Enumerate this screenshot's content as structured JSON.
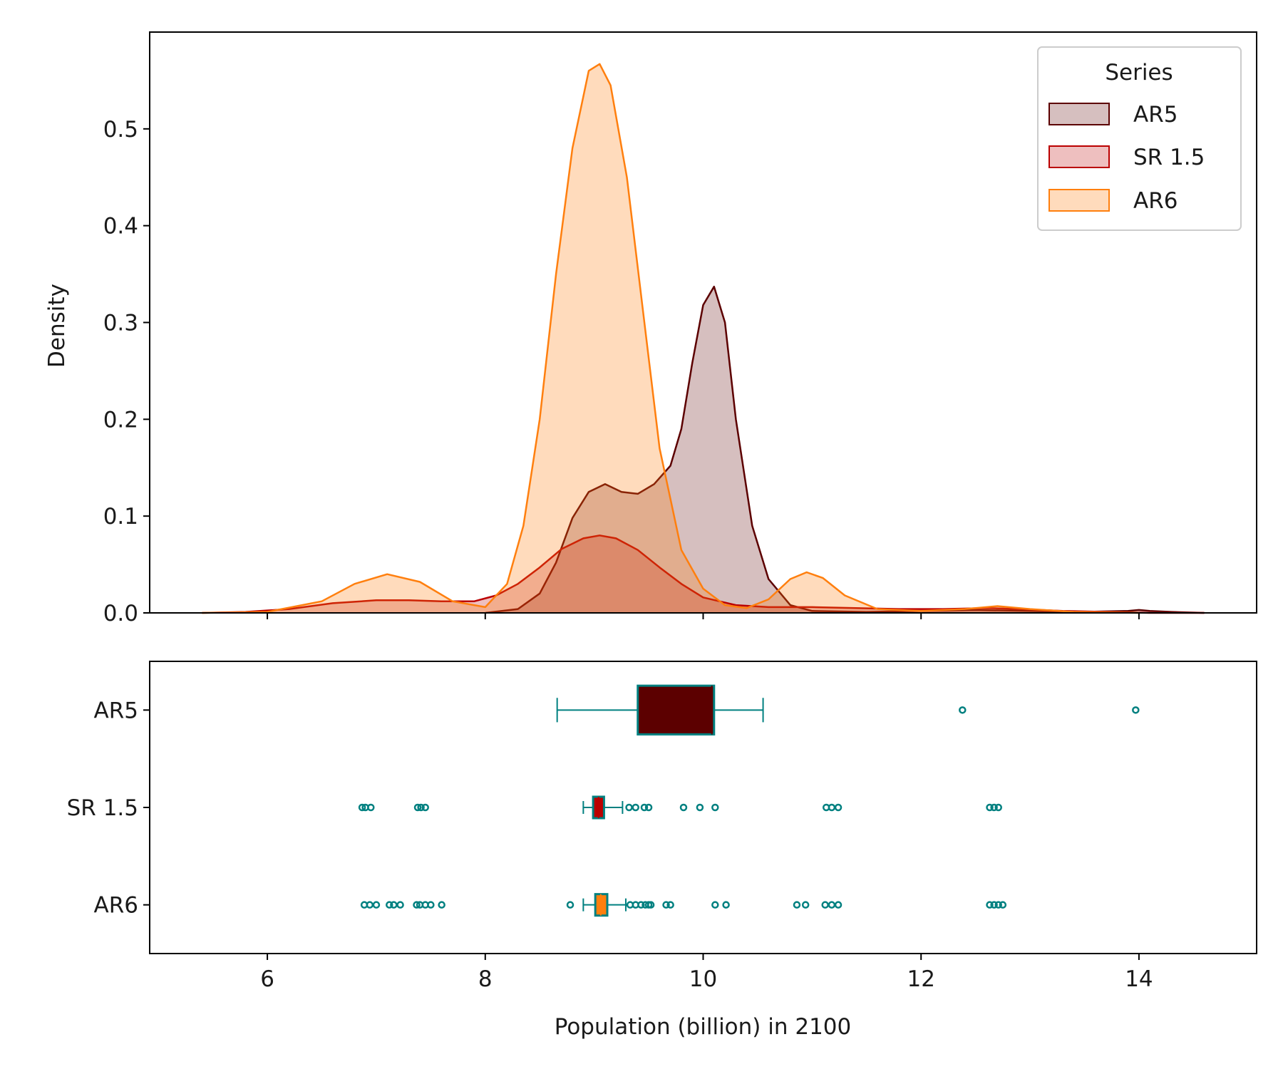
{
  "chart_data": [
    {
      "type": "area",
      "subtype": "kde",
      "ylabel": "Density",
      "xlabel": "",
      "xlim": [
        4.92,
        15.08
      ],
      "ylim": [
        0,
        0.6
      ],
      "xticks": [
        6,
        8,
        10,
        12,
        14
      ],
      "yticks": [
        0.0,
        0.1,
        0.2,
        0.3,
        0.4,
        0.5
      ],
      "ytick_labels": [
        "0.0",
        "0.1",
        "0.2",
        "0.3",
        "0.4",
        "0.5"
      ],
      "grid": false,
      "legend": {
        "title": "Series",
        "position": "top-right",
        "entries": [
          "AR5",
          "SR 1.5",
          "AR6"
        ]
      },
      "series": [
        {
          "name": "AR5",
          "color": "#5c0000",
          "fill_opacity": 0.25,
          "x": [
            8.0,
            8.3,
            8.5,
            8.65,
            8.8,
            8.95,
            9.1,
            9.25,
            9.4,
            9.55,
            9.7,
            9.8,
            9.9,
            10.0,
            10.1,
            10.2,
            10.3,
            10.45,
            10.6,
            10.8,
            11.0,
            11.5,
            12.0,
            12.5,
            13.0,
            13.5,
            13.9,
            14.0,
            14.1,
            14.3,
            14.6
          ],
          "y": [
            0.0,
            0.004,
            0.02,
            0.052,
            0.098,
            0.125,
            0.133,
            0.125,
            0.123,
            0.133,
            0.152,
            0.19,
            0.258,
            0.318,
            0.337,
            0.3,
            0.2,
            0.09,
            0.035,
            0.008,
            0.002,
            0.001,
            0.002,
            0.003,
            0.002,
            0.001,
            0.002,
            0.003,
            0.002,
            0.001,
            0.0
          ]
        },
        {
          "name": "SR 1.5",
          "color": "#bb0000",
          "fill_opacity": 0.25,
          "x": [
            5.4,
            5.8,
            6.2,
            6.6,
            7.0,
            7.3,
            7.6,
            7.9,
            8.1,
            8.3,
            8.5,
            8.7,
            8.9,
            9.05,
            9.2,
            9.4,
            9.6,
            9.8,
            10.0,
            10.3,
            10.6,
            11.0,
            11.4,
            11.8,
            12.2,
            12.6,
            12.9,
            13.3,
            13.7,
            14.1,
            14.6
          ],
          "y": [
            0.0,
            0.001,
            0.004,
            0.01,
            0.013,
            0.013,
            0.012,
            0.012,
            0.018,
            0.03,
            0.047,
            0.066,
            0.077,
            0.08,
            0.077,
            0.065,
            0.047,
            0.03,
            0.016,
            0.008,
            0.006,
            0.006,
            0.005,
            0.004,
            0.004,
            0.005,
            0.004,
            0.002,
            0.001,
            0.0,
            0.0
          ]
        },
        {
          "name": "AR6",
          "color": "#ff7f0e",
          "fill_opacity": 0.28,
          "x": [
            5.4,
            6.0,
            6.5,
            6.8,
            7.1,
            7.4,
            7.7,
            8.0,
            8.2,
            8.35,
            8.5,
            8.65,
            8.8,
            8.95,
            9.05,
            9.15,
            9.3,
            9.45,
            9.6,
            9.8,
            10.0,
            10.2,
            10.4,
            10.6,
            10.8,
            10.95,
            11.1,
            11.3,
            11.6,
            12.0,
            12.4,
            12.7,
            13.0,
            13.4,
            14.0
          ],
          "y": [
            0.0,
            0.001,
            0.012,
            0.03,
            0.04,
            0.032,
            0.012,
            0.006,
            0.03,
            0.09,
            0.2,
            0.35,
            0.48,
            0.56,
            0.567,
            0.545,
            0.45,
            0.31,
            0.17,
            0.065,
            0.025,
            0.008,
            0.005,
            0.014,
            0.035,
            0.042,
            0.036,
            0.018,
            0.004,
            0.002,
            0.004,
            0.007,
            0.004,
            0.001,
            0.0
          ]
        }
      ]
    },
    {
      "type": "box",
      "orientation": "horizontal",
      "xlabel": "Population (billion) in 2100",
      "xlim": [
        4.92,
        15.08
      ],
      "xticks": [
        6,
        8,
        10,
        12,
        14
      ],
      "xtick_labels": [
        "6",
        "8",
        "10",
        "12",
        "14"
      ],
      "categories": [
        "AR5",
        "SR 1.5",
        "AR6"
      ],
      "whisker_color": "#008080",
      "grid": false,
      "boxes": [
        {
          "name": "AR5",
          "fill": "#5c0000",
          "whisker_low": 8.66,
          "q1": 9.4,
          "median": 10.08,
          "q3": 10.1,
          "whisker_high": 10.55,
          "outliers": [
            12.38,
            13.97
          ],
          "box_height": 0.5
        },
        {
          "name": "SR 1.5",
          "fill": "#bb0000",
          "whisker_low": 8.9,
          "q1": 8.99,
          "median": 9.04,
          "q3": 9.09,
          "whisker_high": 9.26,
          "outliers": [
            6.87,
            6.9,
            6.95,
            7.38,
            7.41,
            7.45,
            9.32,
            9.38,
            9.46,
            9.5,
            9.82,
            9.97,
            10.11,
            11.13,
            11.18,
            11.24,
            12.63,
            12.67,
            12.71
          ],
          "box_height": 0.22
        },
        {
          "name": "AR6",
          "fill": "#ff7f0e",
          "whisker_low": 8.9,
          "q1": 9.01,
          "median": 9.06,
          "q3": 9.12,
          "whisker_high": 9.29,
          "outliers": [
            6.89,
            6.94,
            7.0,
            7.12,
            7.16,
            7.22,
            7.37,
            7.4,
            7.45,
            7.5,
            7.6,
            8.78,
            9.33,
            9.38,
            9.43,
            9.47,
            9.5,
            9.52,
            9.66,
            9.7,
            10.11,
            10.21,
            10.86,
            10.94,
            11.12,
            11.18,
            11.24,
            12.63,
            12.67,
            12.71,
            12.75
          ],
          "box_height": 0.22
        }
      ]
    }
  ]
}
